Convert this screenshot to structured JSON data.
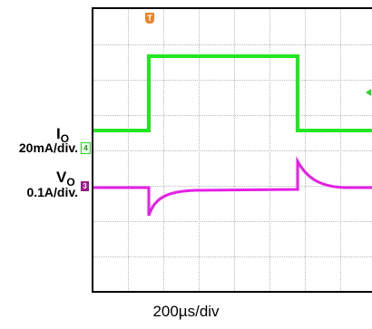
{
  "chart_data": {
    "type": "line",
    "timebase": "200µs/div",
    "trigger_marker": "T",
    "channels": [
      {
        "badge": "4",
        "label_main": "I",
        "label_sub": "O",
        "scale": "20mA/div.",
        "color": "#22e622"
      },
      {
        "badge": "3",
        "label_main": "V",
        "label_sub": "O",
        "scale": "0.1A/div.",
        "color": "#e61ee6"
      }
    ],
    "grid": true,
    "x_divisions": 8,
    "y_divisions": 8
  }
}
